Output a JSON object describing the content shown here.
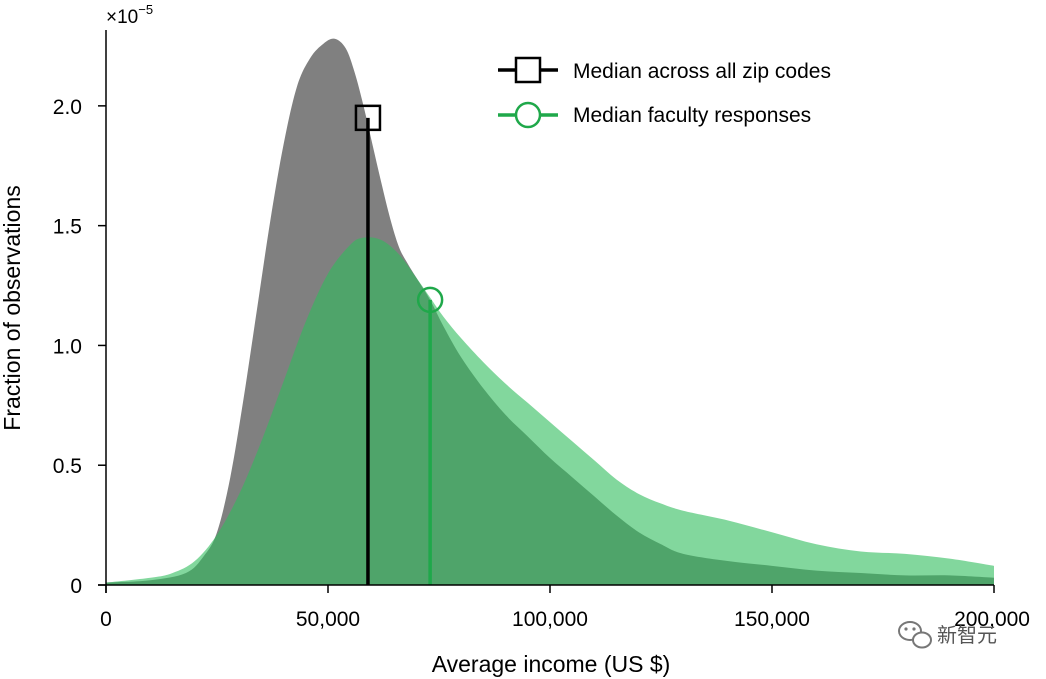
{
  "chart_data": {
    "type": "area",
    "title": "",
    "xlabel": "Average income (US $)",
    "ylabel": "Fraction of observations",
    "y_scale_label": "×10",
    "y_scale_exponent": "−5",
    "xlim": [
      0,
      200000
    ],
    "ylim": [
      0,
      2.3
    ],
    "x_ticks": [
      0,
      50000,
      100000,
      150000,
      200000
    ],
    "x_tick_labels": [
      "0",
      "50,000",
      "100,000",
      "150,000",
      "200,000"
    ],
    "y_ticks": [
      0,
      0.5,
      1.0,
      1.5,
      2.0
    ],
    "y_tick_labels": [
      "0",
      "0.5",
      "1.0",
      "1.5",
      "2.0"
    ],
    "grid": false,
    "legend_position": "top-right",
    "series": [
      {
        "name": "Median across all zip codes",
        "fill_color": "#808080",
        "median_line_color": "#000000",
        "marker": "square",
        "median": {
          "x": 59000,
          "y": 1.95
        },
        "points": [
          [
            0,
            0.01
          ],
          [
            10000,
            0.02
          ],
          [
            18000,
            0.05
          ],
          [
            22000,
            0.12
          ],
          [
            25000,
            0.22
          ],
          [
            28000,
            0.45
          ],
          [
            31000,
            0.78
          ],
          [
            34000,
            1.15
          ],
          [
            37000,
            1.52
          ],
          [
            40000,
            1.84
          ],
          [
            43000,
            2.08
          ],
          [
            46000,
            2.2
          ],
          [
            49000,
            2.26
          ],
          [
            51500,
            2.28
          ],
          [
            54000,
            2.24
          ],
          [
            56000,
            2.14
          ],
          [
            58000,
            2.0
          ],
          [
            60000,
            1.84
          ],
          [
            62000,
            1.68
          ],
          [
            64000,
            1.53
          ],
          [
            66000,
            1.41
          ],
          [
            68000,
            1.34
          ],
          [
            70000,
            1.28
          ],
          [
            73000,
            1.19
          ],
          [
            76000,
            1.08
          ],
          [
            80000,
            0.95
          ],
          [
            85000,
            0.82
          ],
          [
            90000,
            0.71
          ],
          [
            95000,
            0.62
          ],
          [
            100000,
            0.53
          ],
          [
            105000,
            0.45
          ],
          [
            110000,
            0.37
          ],
          [
            115000,
            0.29
          ],
          [
            120000,
            0.22
          ],
          [
            125000,
            0.17
          ],
          [
            130000,
            0.13
          ],
          [
            140000,
            0.1
          ],
          [
            150000,
            0.08
          ],
          [
            160000,
            0.06
          ],
          [
            170000,
            0.05
          ],
          [
            180000,
            0.04
          ],
          [
            190000,
            0.04
          ],
          [
            200000,
            0.03
          ]
        ]
      },
      {
        "name": "Median faculty responses",
        "fill_color": "#2ebd5c",
        "median_line_color": "#1fa84a",
        "marker": "circle",
        "median": {
          "x": 73000,
          "y": 1.19
        },
        "points": [
          [
            0,
            0.01
          ],
          [
            10000,
            0.03
          ],
          [
            15000,
            0.05
          ],
          [
            20000,
            0.1
          ],
          [
            25000,
            0.21
          ],
          [
            30000,
            0.38
          ],
          [
            35000,
            0.6
          ],
          [
            40000,
            0.85
          ],
          [
            45000,
            1.1
          ],
          [
            50000,
            1.3
          ],
          [
            55000,
            1.42
          ],
          [
            58000,
            1.45
          ],
          [
            62000,
            1.44
          ],
          [
            66000,
            1.38
          ],
          [
            70000,
            1.28
          ],
          [
            73000,
            1.2
          ],
          [
            76000,
            1.12
          ],
          [
            80000,
            1.03
          ],
          [
            85000,
            0.93
          ],
          [
            90000,
            0.84
          ],
          [
            95000,
            0.76
          ],
          [
            100000,
            0.68
          ],
          [
            105000,
            0.6
          ],
          [
            110000,
            0.52
          ],
          [
            115000,
            0.44
          ],
          [
            120000,
            0.38
          ],
          [
            125000,
            0.34
          ],
          [
            130000,
            0.31
          ],
          [
            140000,
            0.27
          ],
          [
            150000,
            0.22
          ],
          [
            160000,
            0.17
          ],
          [
            170000,
            0.14
          ],
          [
            180000,
            0.13
          ],
          [
            190000,
            0.11
          ],
          [
            200000,
            0.08
          ]
        ]
      }
    ]
  },
  "watermark": {
    "text": "新智元",
    "icon": "wechat-logo-icon"
  }
}
